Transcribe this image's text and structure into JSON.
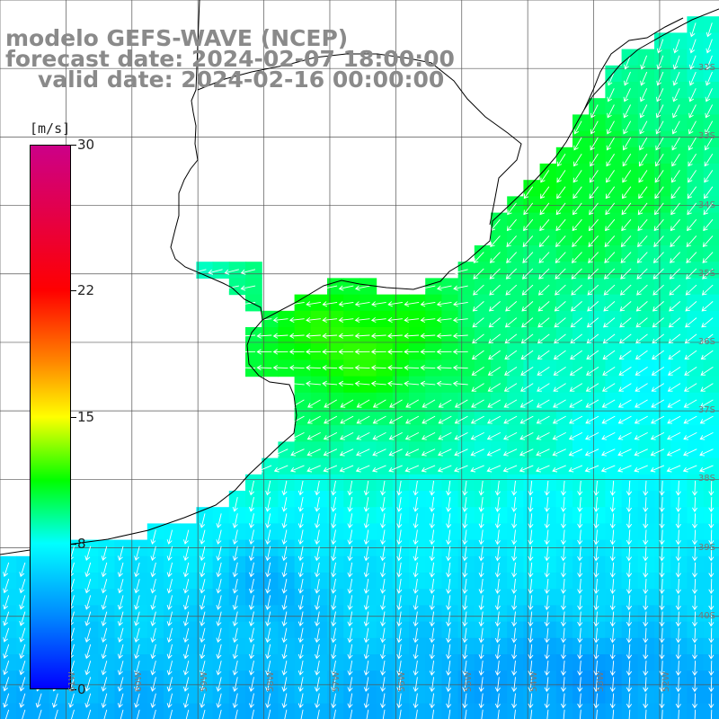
{
  "titles": {
    "line1": "modelo GEFS-WAVE (NCEP)",
    "line2": "forecast date: 2024-02-07 18:00:00",
    "line3": "valid date: 2024-02-16 00:00:00"
  },
  "colorbar": {
    "unit": "[m/s]",
    "ticks": [
      "30",
      "22",
      "15",
      "8",
      "0"
    ],
    "tick_values": [
      30,
      22,
      15,
      8,
      0
    ],
    "min": 0,
    "max": 30,
    "stops": [
      {
        "value": 0,
        "color": "#0000ff"
      },
      {
        "value": 4,
        "color": "#0088ff"
      },
      {
        "value": 8,
        "color": "#00ffff"
      },
      {
        "value": 11.5,
        "color": "#00ff00"
      },
      {
        "value": 15,
        "color": "#ffff00"
      },
      {
        "value": 18,
        "color": "#ff8800"
      },
      {
        "value": 22,
        "color": "#ff0000"
      },
      {
        "value": 30,
        "color": "#cc0088"
      }
    ]
  },
  "lat_labels": [
    "32S",
    "33S",
    "34S",
    "35S",
    "36S",
    "37S",
    "38S",
    "39S",
    "40S"
  ],
  "lat_values": [
    32,
    33,
    34,
    35,
    36,
    37,
    38,
    39,
    40
  ],
  "lon_labels": [
    "61W",
    "60W",
    "59W",
    "58W",
    "57W",
    "56W",
    "55W",
    "54W",
    "53W",
    "52W",
    "51W"
  ],
  "lon_values": [
    61,
    60,
    59,
    58,
    57,
    56,
    55,
    54,
    53,
    52,
    51
  ],
  "map_extent": {
    "lon_west": 62,
    "lon_east": 51.1,
    "lat_north": 31,
    "lat_south": 41.5
  },
  "colors": {
    "land": "#ffffff",
    "coastline": "#000000",
    "grid": "#555555",
    "arrow": "#ffffff"
  }
}
